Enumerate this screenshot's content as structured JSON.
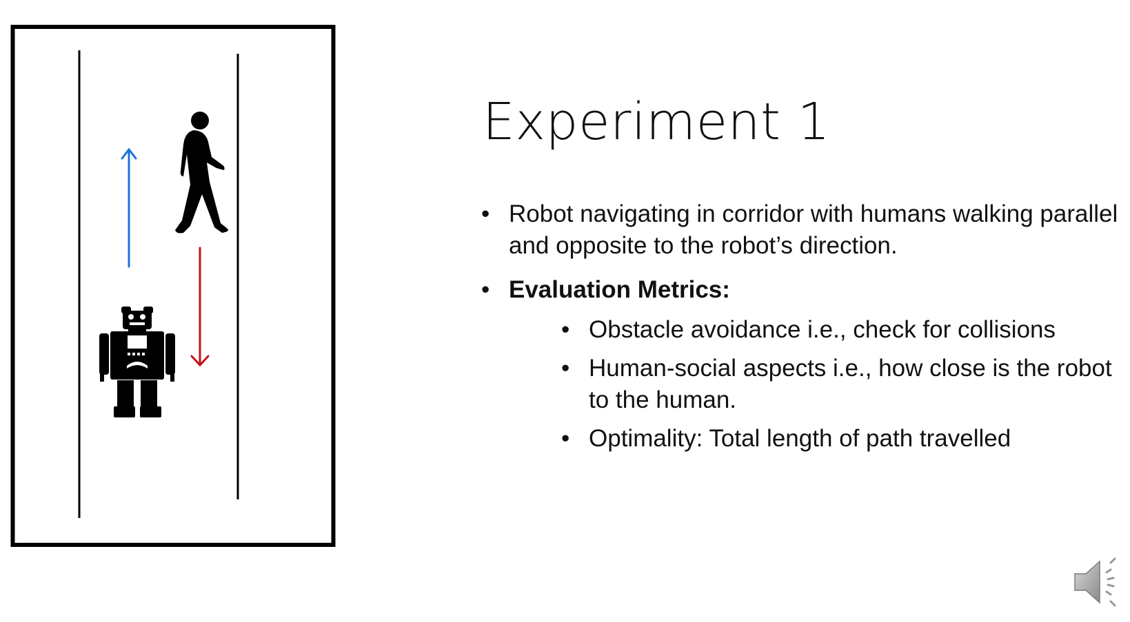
{
  "slide": {
    "title": "Experiment 1",
    "bullets": [
      {
        "text": "Robot navigating in corridor with humans walking parallel and opposite to the robot’s direction.",
        "bold": false
      },
      {
        "text": "Evaluation Metrics:",
        "bold": true,
        "sub": [
          {
            "text": "Obstacle avoidance i.e., check for collisions"
          },
          {
            "text": "Human-social aspects i.e., how close is the robot to the human."
          },
          {
            "text": "Optimality: Total length of path travelled"
          }
        ]
      }
    ],
    "bullet_glyph": "•"
  },
  "diagram": {
    "icons": [
      "walking-human-icon",
      "robot-icon",
      "up-arrow-icon",
      "down-arrow-icon"
    ],
    "colors": {
      "robot_arrow": "#1a73d9",
      "human_arrow": "#c0121a",
      "frame": "#000000"
    }
  },
  "audio": {
    "icon": "speaker-icon"
  }
}
